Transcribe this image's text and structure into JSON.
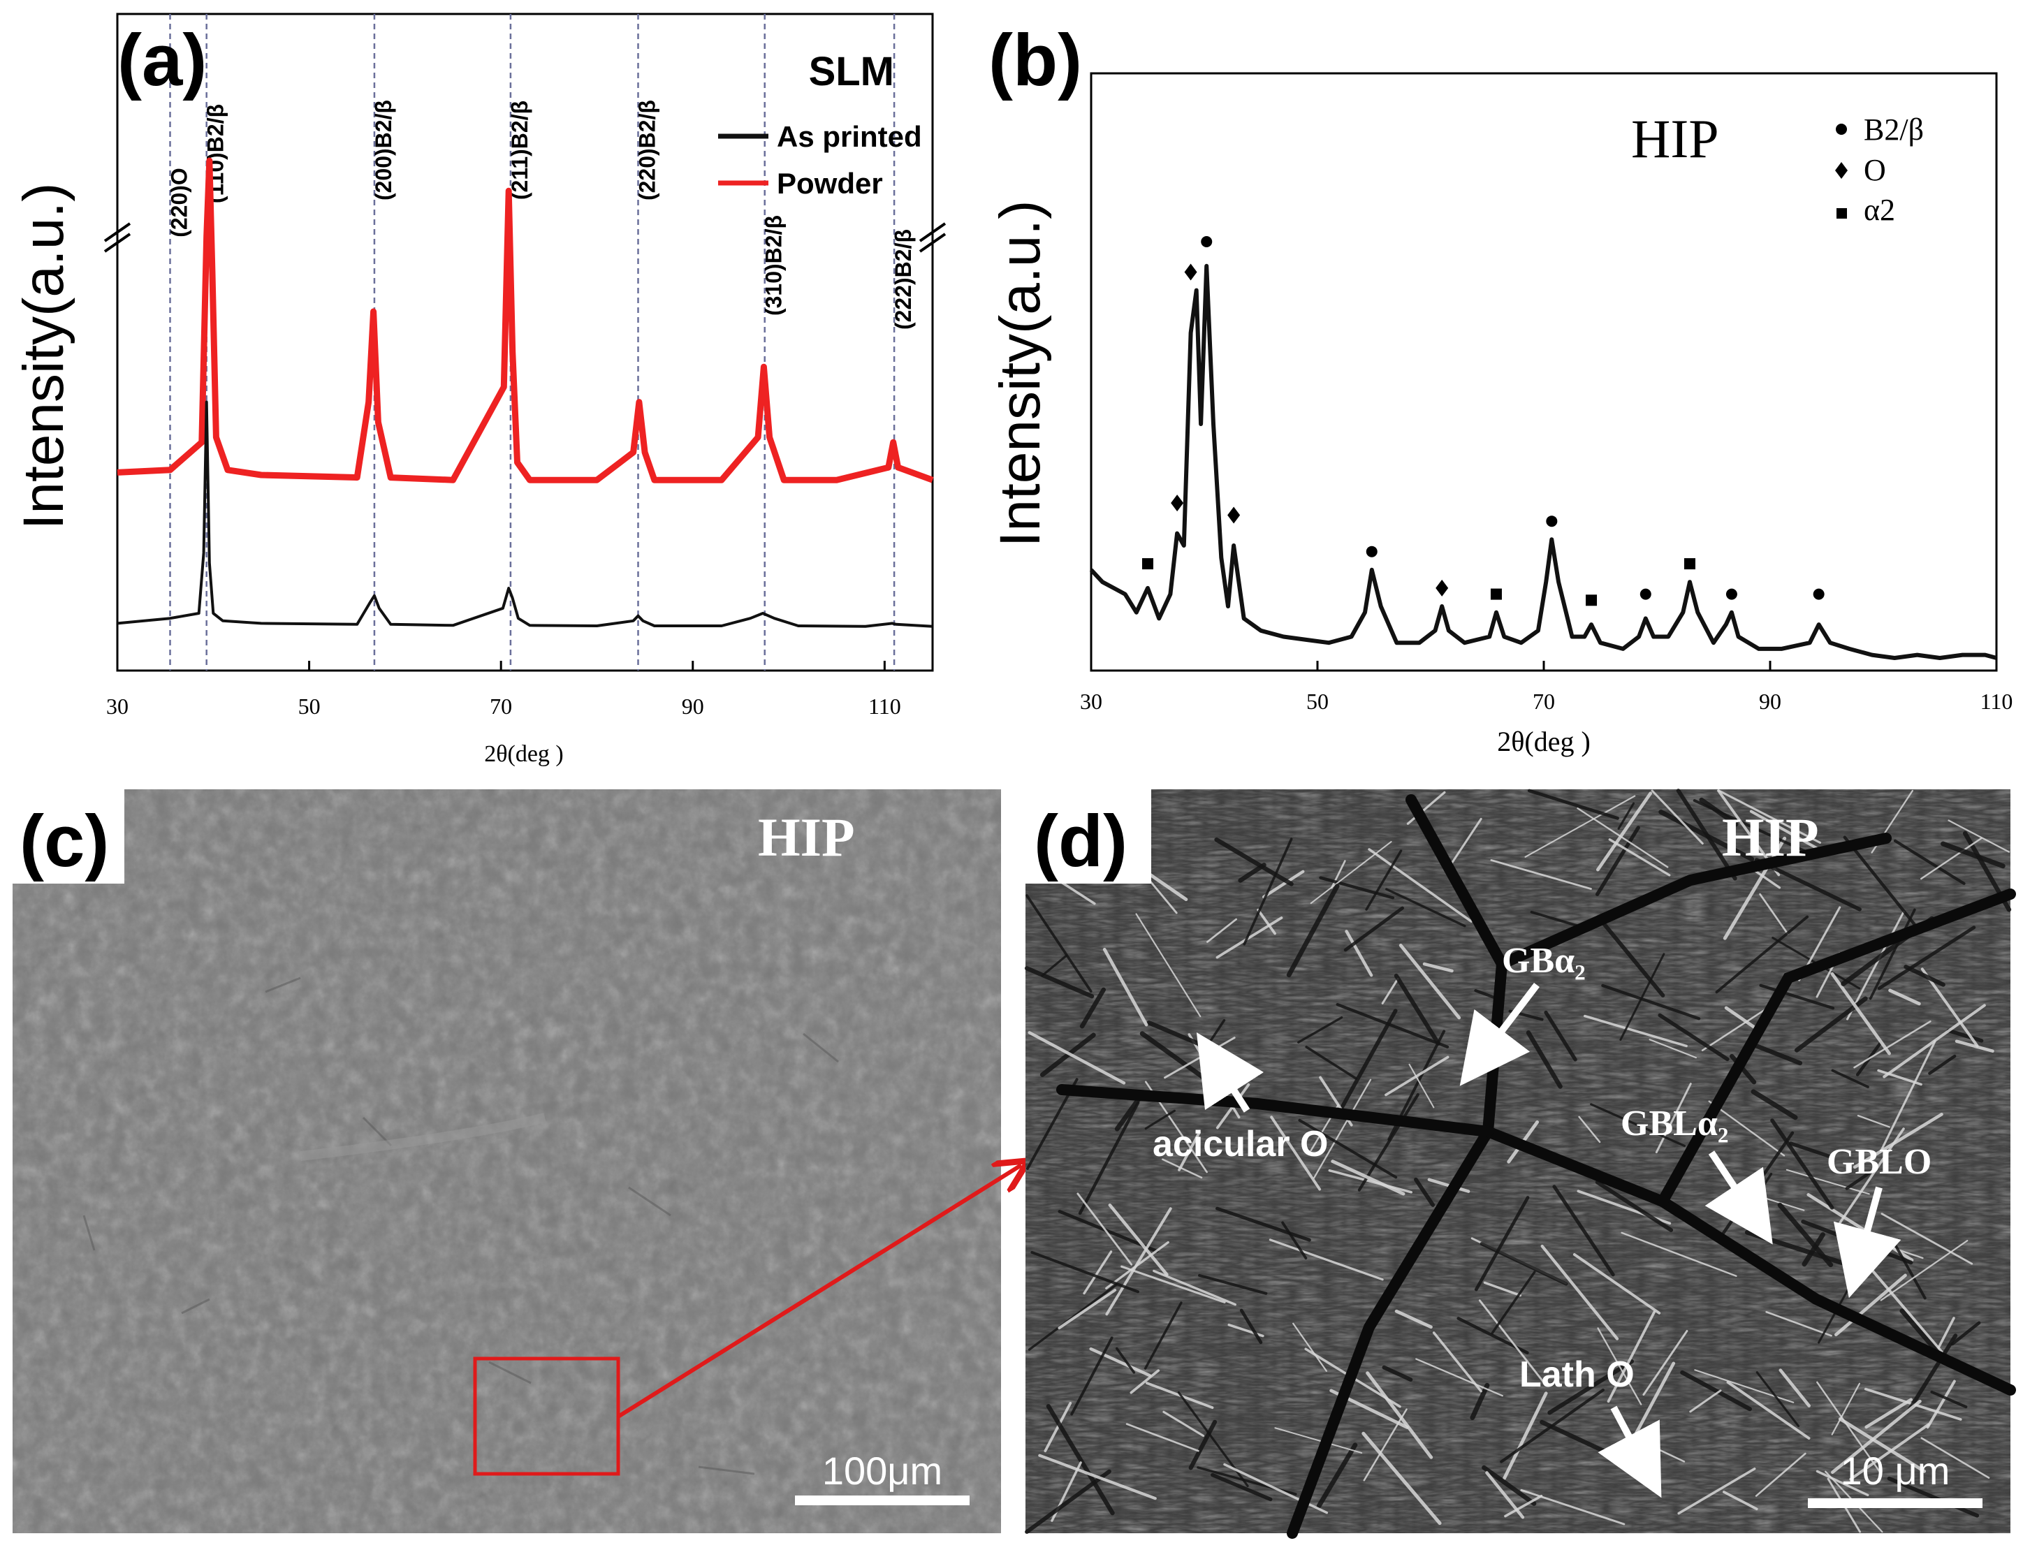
{
  "panels": {
    "a": "(a)",
    "b": "(b)",
    "c": "(c)",
    "d": "(d)"
  },
  "chart_data": [
    {
      "type": "line",
      "panel": "(a)",
      "title": "SLM",
      "xlabel": "2θ(deg )",
      "ylabel": "Intensity(a.u.)",
      "xlim": [
        30,
        115
      ],
      "x_ticks": [
        "30",
        "50",
        "70",
        "90",
        "110"
      ],
      "grid": false,
      "legend_position": "top-right",
      "colors": {
        "as_printed": "#111111",
        "powder": "#ee2222",
        "ref_lines": "#6a6f9a"
      },
      "series": [
        {
          "name": "As printed",
          "x": [
            30,
            35.5,
            38.5,
            39.0,
            39.3,
            39.6,
            40.0,
            41.0,
            45,
            55,
            56.3,
            56.8,
            57.3,
            58.5,
            65,
            70.2,
            70.8,
            71.2,
            71.8,
            73,
            80,
            83.8,
            84.3,
            84.8,
            86,
            93,
            96,
            97.3,
            98.5,
            101,
            108,
            110.8,
            111.2,
            115
          ],
          "y": [
            0.08,
            0.09,
            0.1,
            0.22,
            0.52,
            0.2,
            0.1,
            0.085,
            0.08,
            0.078,
            0.12,
            0.135,
            0.11,
            0.078,
            0.076,
            0.11,
            0.15,
            0.13,
            0.09,
            0.076,
            0.075,
            0.085,
            0.095,
            0.085,
            0.075,
            0.075,
            0.09,
            0.1,
            0.09,
            0.075,
            0.074,
            0.08,
            0.078,
            0.074
          ]
        },
        {
          "name": "Powder",
          "x": [
            30,
            35.5,
            38.8,
            39.3,
            39.6,
            39.9,
            40.3,
            41.5,
            45,
            55,
            56.2,
            56.7,
            57.2,
            58.5,
            65,
            70.3,
            70.8,
            71.2,
            71.7,
            73,
            80,
            83.8,
            84.4,
            85.0,
            86,
            93,
            96.8,
            97.4,
            98.0,
            99.5,
            105,
            110.4,
            110.9,
            111.4,
            115
          ],
          "y": [
            0.38,
            0.385,
            0.44,
            0.85,
            1.0,
            0.78,
            0.45,
            0.385,
            0.375,
            0.37,
            0.52,
            0.7,
            0.48,
            0.37,
            0.365,
            0.55,
            0.94,
            0.62,
            0.4,
            0.365,
            0.365,
            0.42,
            0.52,
            0.42,
            0.365,
            0.365,
            0.45,
            0.59,
            0.45,
            0.365,
            0.365,
            0.39,
            0.44,
            0.39,
            0.365
          ]
        }
      ],
      "reference_lines": [
        {
          "x": 35.5,
          "label": "(220)O"
        },
        {
          "x": 39.3,
          "label": "(110)B2/β"
        },
        {
          "x": 56.8,
          "label": "(200)B2/β"
        },
        {
          "x": 71.0,
          "label": "(211)B2/β"
        },
        {
          "x": 84.3,
          "label": "(220)B2/β"
        },
        {
          "x": 97.5,
          "label": "(310)B2/β"
        },
        {
          "x": 111.0,
          "label": "(222)B2/β"
        }
      ]
    },
    {
      "type": "line",
      "panel": "(b)",
      "title": "HIP",
      "xlabel": "2θ(deg )",
      "ylabel": "Intensity(a.u.)",
      "xlim": [
        30,
        110
      ],
      "x_ticks": [
        "30",
        "50",
        "70",
        "90",
        "110"
      ],
      "grid": false,
      "legend_position": "top-right",
      "legend": [
        {
          "marker": "circle",
          "label": "B2/β"
        },
        {
          "marker": "diamond",
          "label": "O"
        },
        {
          "marker": "square",
          "label": "α2"
        }
      ],
      "series": [
        {
          "x": [
            30,
            31,
            32,
            33,
            34,
            35,
            36,
            37,
            37.6,
            38.2,
            38.8,
            39.3,
            39.7,
            40.2,
            40.8,
            41.5,
            42.1,
            42.6,
            43.5,
            45,
            47,
            49,
            51,
            53,
            54.2,
            54.8,
            55.6,
            57,
            59,
            60.4,
            61.0,
            61.6,
            63,
            65.2,
            65.8,
            66.5,
            68,
            69.5,
            70.2,
            70.7,
            71.3,
            72.5,
            73.6,
            74.2,
            75,
            77,
            78.4,
            79.0,
            79.7,
            81,
            82.3,
            82.9,
            83.6,
            85,
            86.1,
            86.6,
            87.2,
            89,
            91,
            93.5,
            94.3,
            95.3,
            97,
            99,
            101,
            103,
            105,
            107,
            109,
            110
          ],
          "y": [
            0.16,
            0.14,
            0.13,
            0.12,
            0.09,
            0.13,
            0.08,
            0.12,
            0.22,
            0.2,
            0.55,
            0.62,
            0.4,
            0.66,
            0.4,
            0.18,
            0.1,
            0.2,
            0.08,
            0.06,
            0.05,
            0.045,
            0.04,
            0.05,
            0.09,
            0.16,
            0.1,
            0.04,
            0.04,
            0.06,
            0.1,
            0.06,
            0.04,
            0.05,
            0.09,
            0.05,
            0.04,
            0.06,
            0.14,
            0.21,
            0.14,
            0.05,
            0.05,
            0.07,
            0.04,
            0.03,
            0.05,
            0.08,
            0.05,
            0.05,
            0.09,
            0.14,
            0.09,
            0.04,
            0.07,
            0.09,
            0.05,
            0.03,
            0.03,
            0.04,
            0.07,
            0.04,
            0.03,
            0.02,
            0.015,
            0.02,
            0.015,
            0.02,
            0.02,
            0.015
          ]
        }
      ],
      "markers": [
        {
          "x": 35.0,
          "y": 0.17,
          "type": "square"
        },
        {
          "x": 37.6,
          "y": 0.27,
          "type": "diamond"
        },
        {
          "x": 38.8,
          "y": 0.65,
          "type": "diamond"
        },
        {
          "x": 40.2,
          "y": 0.7,
          "type": "circle"
        },
        {
          "x": 42.6,
          "y": 0.25,
          "type": "diamond"
        },
        {
          "x": 54.8,
          "y": 0.19,
          "type": "circle"
        },
        {
          "x": 61.0,
          "y": 0.13,
          "type": "diamond"
        },
        {
          "x": 65.8,
          "y": 0.12,
          "type": "square"
        },
        {
          "x": 70.7,
          "y": 0.24,
          "type": "circle"
        },
        {
          "x": 74.2,
          "y": 0.11,
          "type": "square"
        },
        {
          "x": 79.0,
          "y": 0.12,
          "type": "circle"
        },
        {
          "x": 82.9,
          "y": 0.17,
          "type": "square"
        },
        {
          "x": 86.6,
          "y": 0.12,
          "type": "circle"
        },
        {
          "x": 94.3,
          "y": 0.12,
          "type": "circle"
        }
      ]
    }
  ],
  "micrographs": {
    "c": {
      "label": "HIP",
      "scale_bar": "100μm",
      "base_color": "#7a7a7a",
      "inset_color": "#e01a1a"
    },
    "d": {
      "label": "HIP",
      "scale_bar": "10 μm",
      "base_color": "#3f3f3f",
      "annotations": {
        "gb_alpha2_top": "GBα₂",
        "acicular": "acicular O",
        "gbl_alpha2": "GBLα₂",
        "gblo": "GBLO",
        "lath": "Lath O"
      }
    }
  }
}
